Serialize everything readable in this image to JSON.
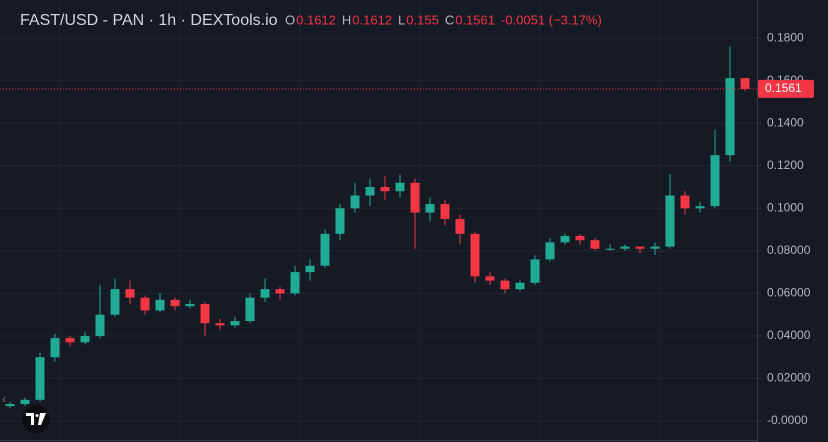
{
  "chart_data": {
    "type": "candlestick",
    "title": "FAST/USD - PAN · 1h · DEXTools.io",
    "ohlc_labels": [
      "O",
      "H",
      "L",
      "C"
    ],
    "change_label": "-0.0051 (−3.17%)",
    "up_color": "#22ab94",
    "down_color": "#f23645",
    "open": [
      0.007,
      0.008,
      0.01,
      0.03,
      0.039,
      0.037,
      0.04,
      0.05,
      0.062,
      0.058,
      0.052,
      0.057,
      0.054,
      0.055,
      0.046,
      0.045,
      0.047,
      0.058,
      0.062,
      0.06,
      0.07,
      0.073,
      0.088,
      0.1,
      0.106,
      0.11,
      0.108,
      0.112,
      0.098,
      0.102,
      0.095,
      0.088,
      0.068,
      0.066,
      0.062,
      0.065,
      0.076,
      0.084,
      0.087,
      0.085,
      0.081,
      0.081,
      0.082,
      0.081,
      0.082,
      0.106,
      0.1,
      0.101,
      0.125,
      0.1612
    ],
    "high": [
      0.009,
      0.011,
      0.032,
      0.041,
      0.04,
      0.042,
      0.064,
      0.067,
      0.066,
      0.059,
      0.06,
      0.058,
      0.057,
      0.056,
      0.048,
      0.049,
      0.06,
      0.067,
      0.063,
      0.073,
      0.076,
      0.09,
      0.102,
      0.112,
      0.114,
      0.115,
      0.116,
      0.114,
      0.105,
      0.104,
      0.097,
      0.089,
      0.07,
      0.067,
      0.066,
      0.078,
      0.086,
      0.088,
      0.088,
      0.086,
      0.083,
      0.083,
      0.082,
      0.084,
      0.116,
      0.108,
      0.103,
      0.137,
      0.176,
      0.1612
    ],
    "low": [
      0.006,
      0.007,
      0.009,
      0.028,
      0.035,
      0.036,
      0.039,
      0.049,
      0.055,
      0.05,
      0.051,
      0.052,
      0.053,
      0.04,
      0.043,
      0.044,
      0.046,
      0.056,
      0.057,
      0.059,
      0.066,
      0.072,
      0.085,
      0.098,
      0.101,
      0.104,
      0.105,
      0.081,
      0.094,
      0.092,
      0.083,
      0.065,
      0.064,
      0.06,
      0.061,
      0.064,
      0.075,
      0.083,
      0.083,
      0.08,
      0.08,
      0.08,
      0.079,
      0.078,
      0.081,
      0.097,
      0.098,
      0.1,
      0.122,
      0.155
    ],
    "close": [
      0.008,
      0.01,
      0.03,
      0.039,
      0.037,
      0.04,
      0.05,
      0.062,
      0.058,
      0.052,
      0.057,
      0.054,
      0.055,
      0.046,
      0.045,
      0.047,
      0.058,
      0.062,
      0.06,
      0.07,
      0.073,
      0.088,
      0.1,
      0.106,
      0.11,
      0.108,
      0.112,
      0.098,
      0.102,
      0.095,
      0.088,
      0.068,
      0.066,
      0.062,
      0.065,
      0.076,
      0.084,
      0.087,
      0.085,
      0.081,
      0.081,
      0.082,
      0.081,
      0.082,
      0.106,
      0.1,
      0.101,
      0.125,
      0.1612,
      0.1561
    ],
    "ylim": [
      -0.0089,
      0.1979
    ],
    "yticks": [
      {
        "value": 0,
        "label": "-0.0000"
      },
      {
        "value": 0.02,
        "label": "0.02000"
      },
      {
        "value": 0.04,
        "label": "0.04000"
      },
      {
        "value": 0.06,
        "label": "0.06000"
      },
      {
        "value": 0.08,
        "label": "0.08000"
      },
      {
        "value": 0.1,
        "label": "0.1000"
      },
      {
        "value": 0.12,
        "label": "0.1200"
      },
      {
        "value": 0.14,
        "label": "0.1400"
      },
      {
        "value": 0.16,
        "label": "0.1600"
      },
      {
        "value": 0.18,
        "label": "0.1800"
      }
    ],
    "grid": true
  }
}
